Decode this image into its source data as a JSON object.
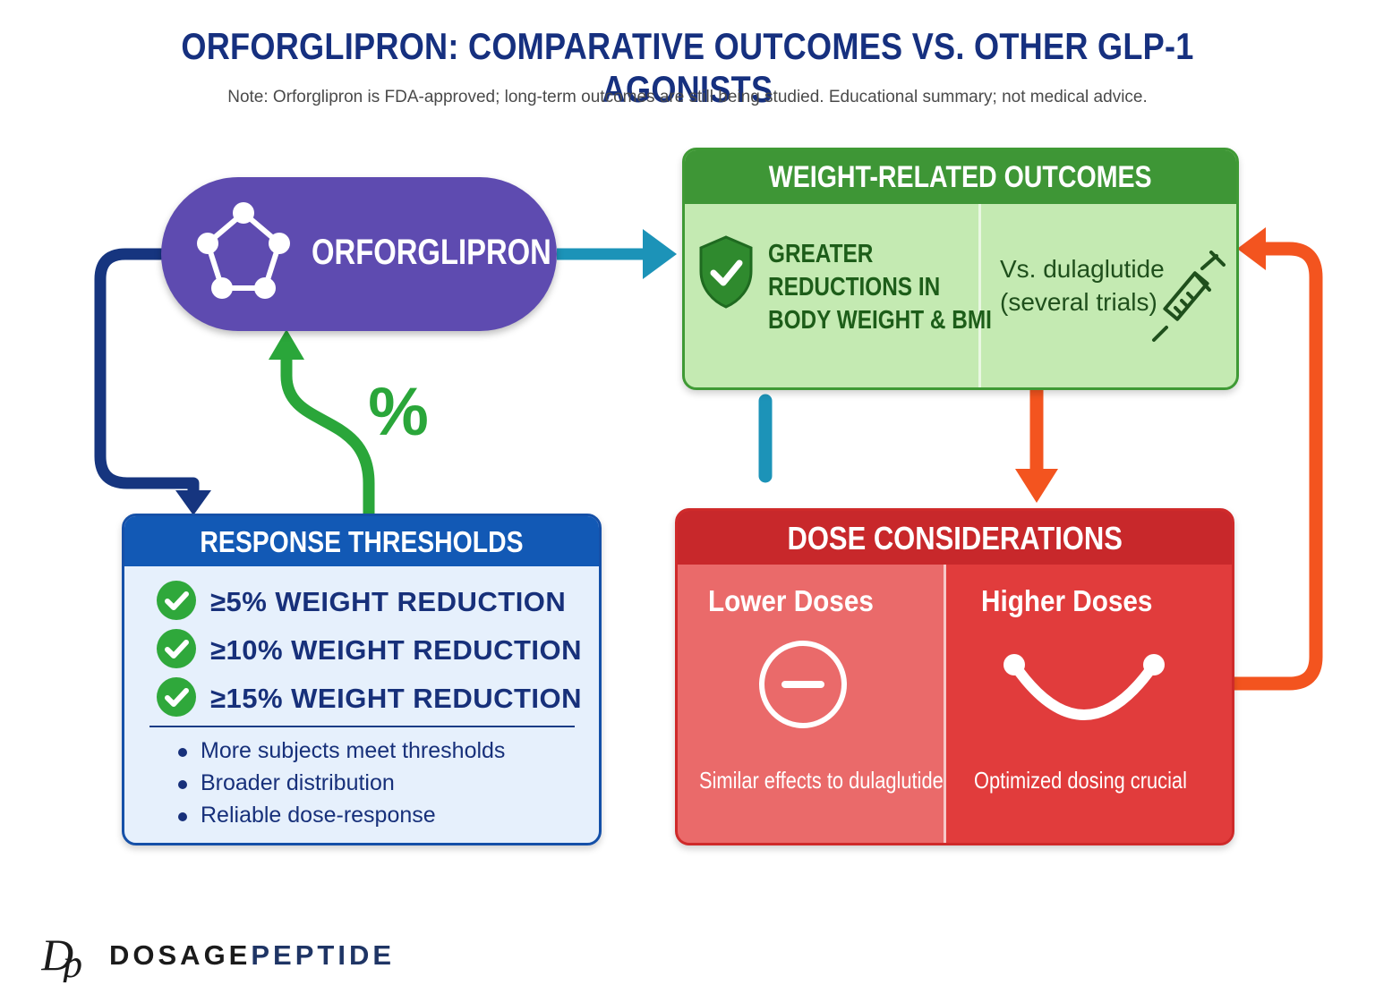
{
  "header": {
    "title": "ORFORGLIPRON: COMPARATIVE OUTCOMES VS. OTHER GLP-1 AGONISTS",
    "note": "Note: Orforglipron is FDA-approved; long-term outcomes are still being studied. Educational summary; not medical advice."
  },
  "drug": {
    "label": "ORFORGLIPRON",
    "icon": "molecule-pentagon-icon"
  },
  "percent_symbol": "%",
  "weight_outcomes": {
    "title": "WEIGHT-RELATED OUTCOMES",
    "left_lines": [
      "GREATER",
      "REDUCTIONS IN",
      "BODY WEIGHT & BMI"
    ],
    "right_lines": [
      "Vs. dulaglutide",
      "(several trials)"
    ],
    "icons": [
      "shield-check-icon",
      "syringe-icon"
    ]
  },
  "response_thresholds": {
    "title": "RESPONSE THRESHOLDS",
    "thresholds": [
      "≥5% WEIGHT REDUCTION",
      "≥10% WEIGHT REDUCTION",
      "≥15% WEIGHT REDUCTION"
    ],
    "bullets": [
      "More subjects meet thresholds",
      "Broader distribution",
      "Reliable dose-response"
    ]
  },
  "dose_considerations": {
    "title": "DOSE CONSIDERATIONS",
    "lower": {
      "title": "Lower Doses",
      "caption": "Similar effects to dulaglutide",
      "icon": "minus-circle-icon"
    },
    "higher": {
      "title": "Higher Doses",
      "caption": "Optimized dosing crucial",
      "icon": "smile-arc-icon"
    }
  },
  "brand": {
    "monogram": "Dp",
    "name_part1": "DOSAGE",
    "name_part2": "PEPTIDE"
  },
  "colors": {
    "title": "#16307f",
    "purple": "#5e4bb0",
    "green": "#3e9636",
    "blue": "#1259b5",
    "red": "#c8282b",
    "orange": "#f3541f",
    "teal": "#1c93b8"
  }
}
